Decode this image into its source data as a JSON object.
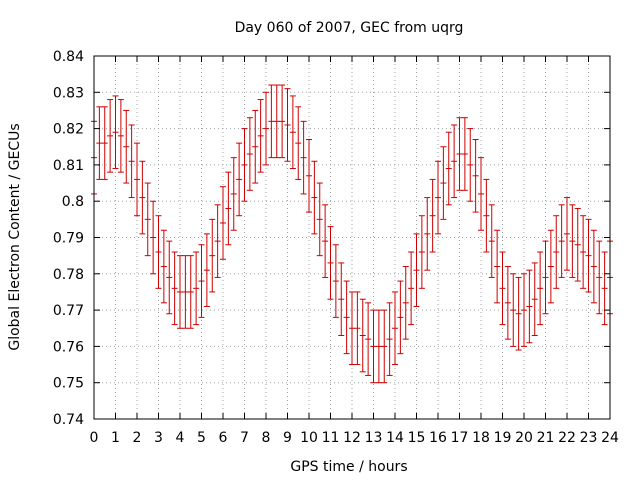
{
  "chart_data": {
    "type": "scatter",
    "title": "Day 060 of 2007, GEC from uqrg",
    "xlabel": "GPS time / hours",
    "ylabel": "Global Electron Content / GECUs",
    "xlim": [
      0,
      24
    ],
    "ylim": [
      0.74,
      0.84
    ],
    "xticks": [
      0,
      1,
      2,
      3,
      4,
      5,
      6,
      7,
      8,
      9,
      10,
      11,
      12,
      13,
      14,
      15,
      16,
      17,
      18,
      19,
      20,
      21,
      22,
      23,
      24
    ],
    "yticks": [
      "0.74",
      "0.75",
      "0.76",
      "0.77",
      "0.78",
      "0.79",
      "0.8",
      "0.81",
      "0.82",
      "0.83",
      "0.84"
    ],
    "grid": true,
    "error_bars": true,
    "error_half_width": 0.01,
    "marker_color": "#cc0000",
    "series": [
      {
        "x": [
          0.0,
          0.25,
          0.5,
          0.75,
          1.0,
          1.25,
          1.5,
          1.75,
          2.0,
          2.25,
          2.5,
          2.75,
          3.0,
          3.25,
          3.5,
          3.75,
          4.0,
          4.25,
          4.5,
          4.75,
          5.0,
          5.25,
          5.5,
          5.75,
          6.0,
          6.25,
          6.5,
          6.75,
          7.0,
          7.25,
          7.5,
          7.75,
          8.0,
          8.25,
          8.5,
          8.75,
          9.0,
          9.25,
          9.5,
          9.75,
          10.0,
          10.25,
          10.5,
          10.75,
          11.0,
          11.25,
          11.5,
          11.75,
          12.0,
          12.25,
          12.5,
          12.75,
          13.0,
          13.25,
          13.5,
          13.75,
          14.0,
          14.25,
          14.5,
          14.75,
          15.0,
          15.25,
          15.5,
          15.75,
          16.0,
          16.25,
          16.5,
          16.75,
          17.0,
          17.25,
          17.5,
          17.75,
          18.0,
          18.25,
          18.5,
          18.75,
          19.0,
          19.25,
          19.5,
          19.75,
          20.0,
          20.25,
          20.5,
          20.75,
          21.0,
          21.25,
          21.5,
          21.75,
          22.0,
          22.25,
          22.5,
          22.75,
          23.0,
          23.25,
          23.5,
          23.75,
          24.0
        ],
        "y": [
          0.812,
          0.816,
          0.816,
          0.818,
          0.819,
          0.818,
          0.815,
          0.811,
          0.806,
          0.801,
          0.795,
          0.79,
          0.786,
          0.782,
          0.779,
          0.776,
          0.775,
          0.775,
          0.775,
          0.776,
          0.778,
          0.781,
          0.785,
          0.789,
          0.794,
          0.798,
          0.802,
          0.806,
          0.81,
          0.813,
          0.815,
          0.818,
          0.82,
          0.822,
          0.822,
          0.822,
          0.821,
          0.819,
          0.816,
          0.812,
          0.807,
          0.801,
          0.795,
          0.789,
          0.783,
          0.778,
          0.773,
          0.768,
          0.765,
          0.765,
          0.763,
          0.762,
          0.76,
          0.76,
          0.76,
          0.762,
          0.765,
          0.768,
          0.772,
          0.776,
          0.781,
          0.786,
          0.791,
          0.796,
          0.801,
          0.805,
          0.809,
          0.811,
          0.813,
          0.813,
          0.81,
          0.807,
          0.802,
          0.796,
          0.789,
          0.782,
          0.776,
          0.772,
          0.77,
          0.769,
          0.77,
          0.771,
          0.773,
          0.776,
          0.779,
          0.782,
          0.786,
          0.789,
          0.791,
          0.789,
          0.788,
          0.786,
          0.785,
          0.782,
          0.779,
          0.776,
          0.779
        ]
      }
    ]
  }
}
